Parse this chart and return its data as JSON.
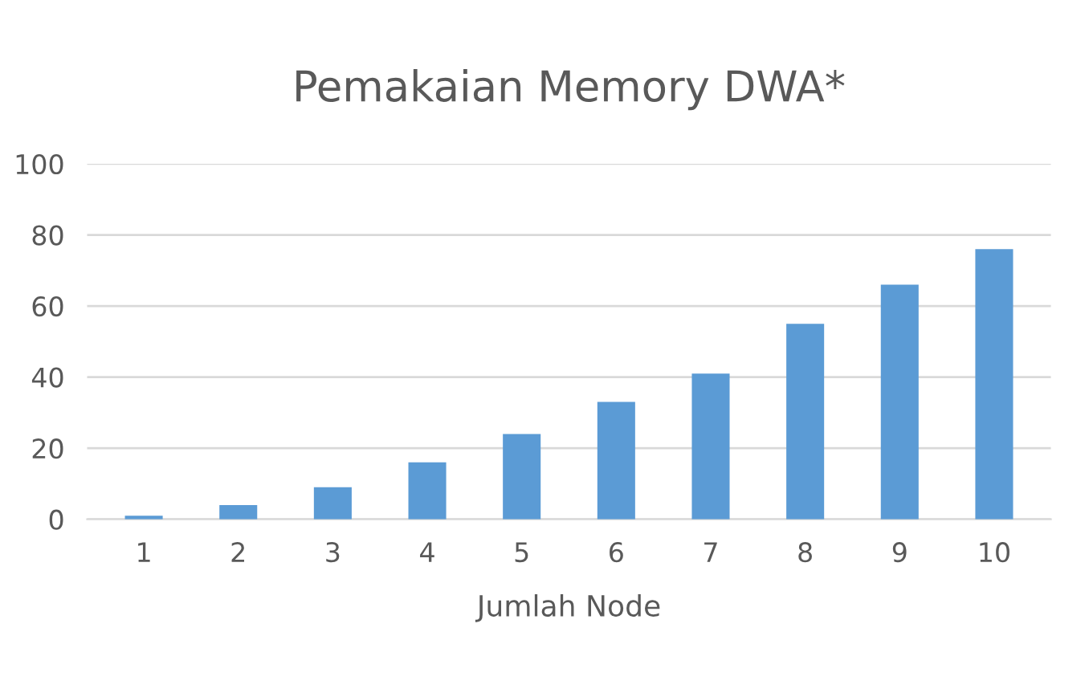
{
  "chart_data": {
    "type": "bar",
    "title": "Pemakaian Memory DWA*",
    "xlabel": "Jumlah Node",
    "categories": [
      "1",
      "2",
      "3",
      "4",
      "5",
      "6",
      "7",
      "8",
      "9",
      "10"
    ],
    "values": [
      1,
      4,
      9,
      16,
      24,
      33,
      41,
      55,
      66,
      76
    ],
    "color": "#5b9bd5",
    "ylim": [
      0,
      100
    ],
    "yticks": [
      0,
      20,
      40,
      60,
      80,
      100
    ],
    "grid": "y"
  }
}
